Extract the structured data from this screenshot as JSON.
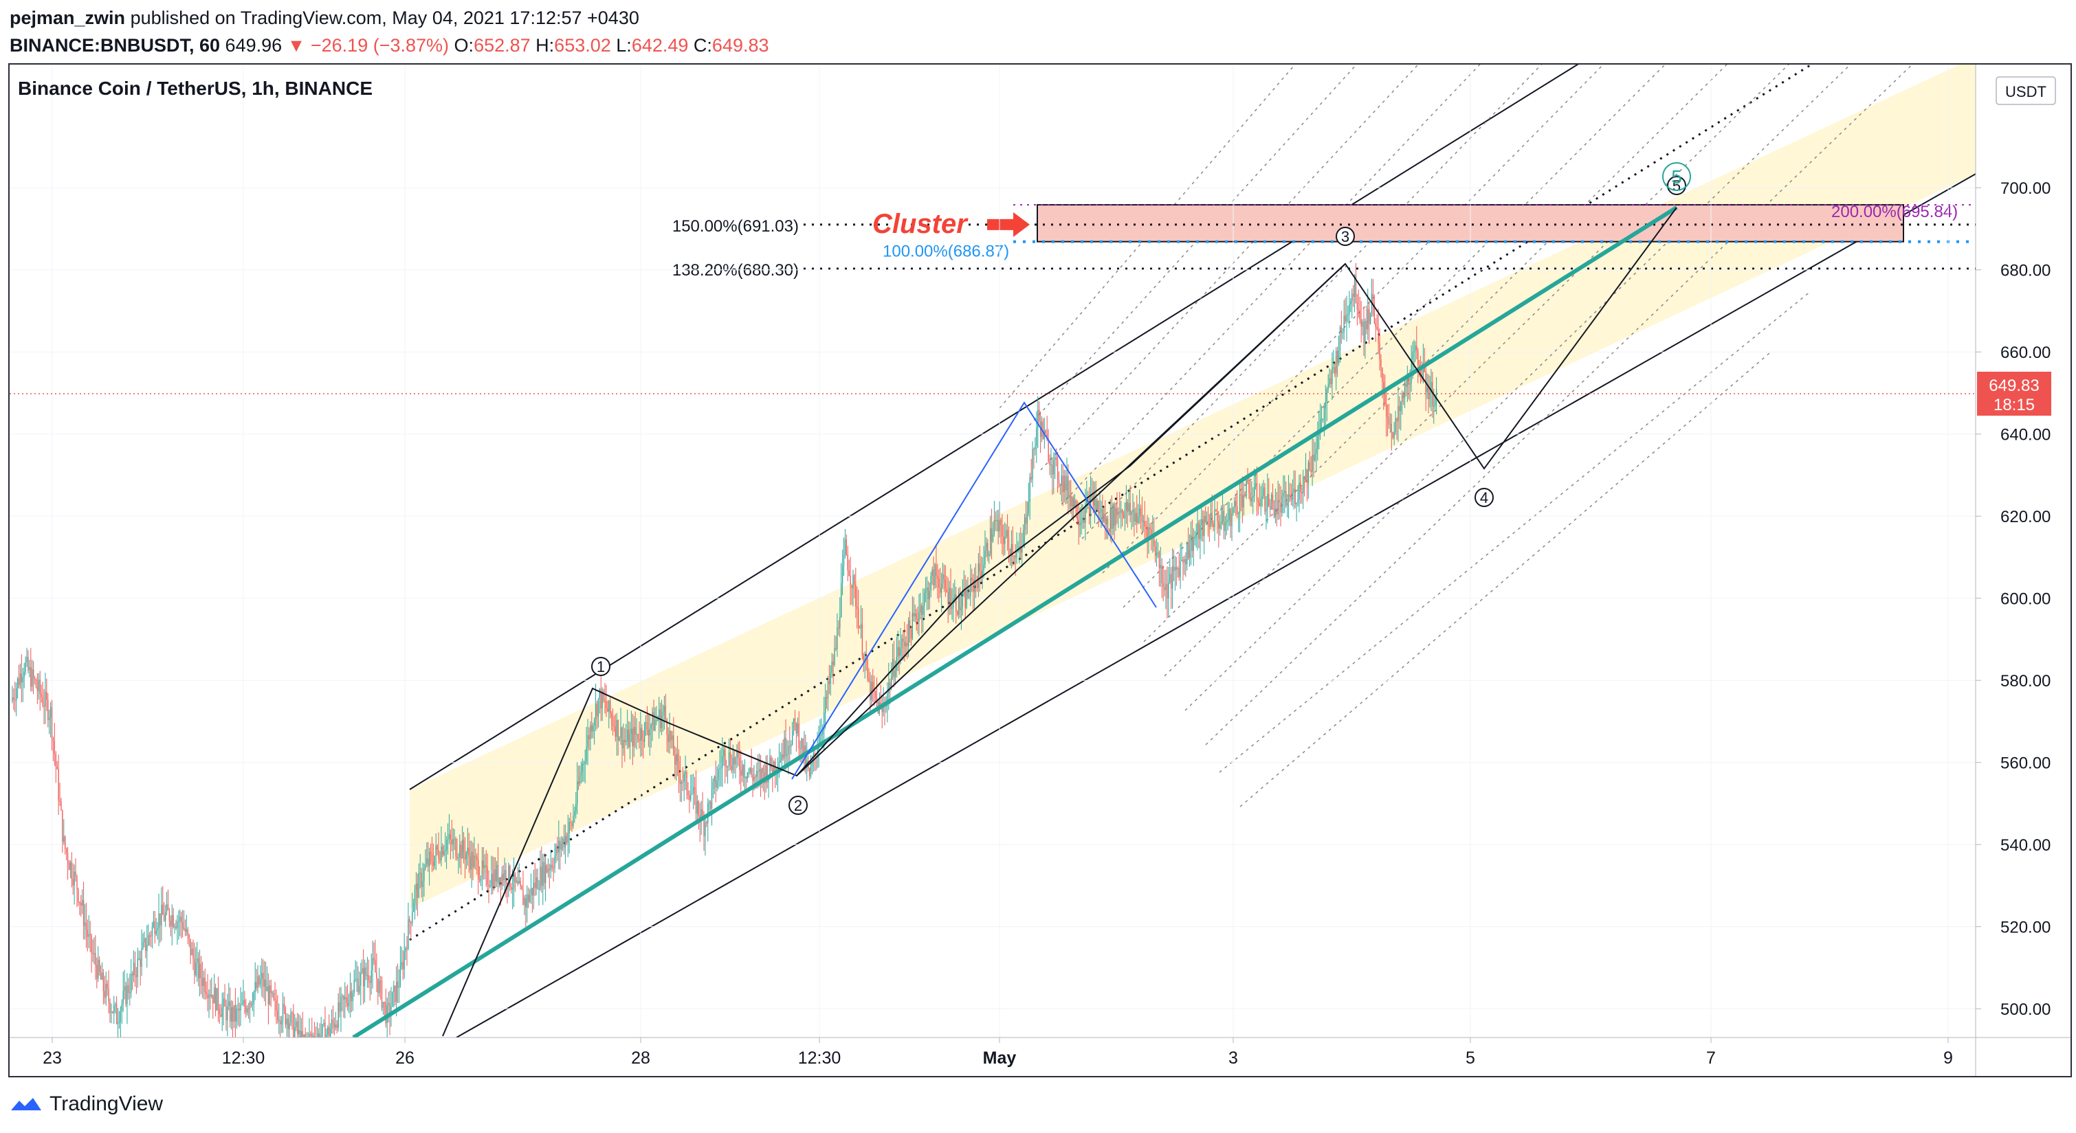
{
  "header": {
    "publisher": "pejman_zwin",
    "published_text": "published on TradingView.com, May 04, 2021 17:12:57 +0430",
    "symbol": "BINANCE:BNBUSDT, 60",
    "last_price": "649.96",
    "change": "▼ −26.19 (−3.87%)",
    "ohlc": {
      "o_label": "O:",
      "o_value": "652.87",
      "h_label": "H:",
      "h_value": "653.02",
      "l_label": "L:",
      "l_value": "642.49",
      "c_label": "C:",
      "c_value": "649.83"
    }
  },
  "footer": {
    "brand": "TradingView"
  },
  "colors": {
    "up": "#26a69a",
    "down": "#ef5350",
    "channel_fill": "#fff7d6",
    "trend": "#26a69a",
    "zone_fill": "#f8c8c0",
    "cluster_text": "#f44336",
    "fib_blue": "#2196f3",
    "fib_purple": "#9c27b0",
    "price_tag": "#ef5350",
    "zigzag_blue": "#2962ff"
  },
  "chart_data": {
    "type": "candlestick",
    "title": "Binance Coin / TetherUS, 1h, BINANCE",
    "currency_label": "USDT",
    "x_ticks": [
      "23",
      "12:30",
      "26",
      "28",
      "12:30",
      "May",
      "3",
      "5",
      "7",
      "9"
    ],
    "y_ticks": [
      500,
      520,
      540,
      560,
      580,
      600,
      620,
      640,
      660,
      680,
      700
    ],
    "ylim": [
      493,
      730
    ],
    "last_price_tag": {
      "price": "649.83",
      "countdown": "18:15",
      "value": 649.83
    },
    "fib_levels": [
      {
        "label": "150.00%(691.03)",
        "value": 691.03
      },
      {
        "label": "138.20%(680.30)",
        "value": 680.3
      },
      {
        "label": "100.00%(686.87)",
        "value": 686.87
      },
      {
        "label": "200.00%(695.84)",
        "value": 695.84
      }
    ],
    "annotations": {
      "cluster_text": "Cluster",
      "wave_labels": [
        "1",
        "2",
        "3",
        "4",
        "5"
      ],
      "target_wave_label": "5"
    },
    "price_path": [
      [
        0,
        575
      ],
      [
        10,
        584
      ],
      [
        20,
        578
      ],
      [
        30,
        572
      ],
      [
        40,
        540
      ],
      [
        50,
        530
      ],
      [
        60,
        515
      ],
      [
        70,
        505
      ],
      [
        80,
        498
      ],
      [
        95,
        510
      ],
      [
        110,
        522
      ],
      [
        120,
        523
      ],
      [
        130,
        521
      ],
      [
        140,
        510
      ],
      [
        150,
        505
      ],
      [
        160,
        500
      ],
      [
        170,
        498
      ],
      [
        180,
        502
      ],
      [
        190,
        507
      ],
      [
        200,
        500
      ],
      [
        210,
        498
      ],
      [
        220,
        492
      ],
      [
        240,
        494
      ],
      [
        260,
        506
      ],
      [
        275,
        510
      ],
      [
        285,
        498
      ],
      [
        295,
        508
      ],
      [
        305,
        527
      ],
      [
        315,
        535
      ],
      [
        330,
        541
      ],
      [
        345,
        538
      ],
      [
        360,
        532
      ],
      [
        375,
        533
      ],
      [
        390,
        526
      ],
      [
        400,
        532
      ],
      [
        410,
        536
      ],
      [
        425,
        545
      ],
      [
        432,
        558
      ],
      [
        440,
        570
      ],
      [
        446,
        576
      ],
      [
        455,
        571
      ],
      [
        465,
        565
      ],
      [
        480,
        568
      ],
      [
        495,
        572
      ],
      [
        505,
        558
      ],
      [
        515,
        553
      ],
      [
        525,
        545
      ],
      [
        540,
        562
      ],
      [
        550,
        560
      ],
      [
        565,
        556
      ],
      [
        580,
        560
      ],
      [
        595,
        569
      ],
      [
        605,
        556
      ],
      [
        615,
        570
      ],
      [
        625,
        588
      ],
      [
        632,
        612
      ],
      [
        640,
        600
      ],
      [
        650,
        578
      ],
      [
        660,
        572
      ],
      [
        670,
        585
      ],
      [
        685,
        595
      ],
      [
        700,
        606
      ],
      [
        710,
        601
      ],
      [
        720,
        598
      ],
      [
        735,
        607
      ],
      [
        745,
        618
      ],
      [
        755,
        614
      ],
      [
        765,
        610
      ],
      [
        778,
        644
      ],
      [
        790,
        632
      ],
      [
        800,
        627
      ],
      [
        810,
        620
      ],
      [
        820,
        624
      ],
      [
        830,
        618
      ],
      [
        840,
        622
      ],
      [
        855,
        620
      ],
      [
        865,
        615
      ],
      [
        875,
        602
      ],
      [
        885,
        608
      ],
      [
        895,
        614
      ],
      [
        910,
        620
      ],
      [
        920,
        618
      ],
      [
        935,
        626
      ],
      [
        945,
        625
      ],
      [
        960,
        622
      ],
      [
        975,
        626
      ],
      [
        985,
        633
      ],
      [
        995,
        646
      ],
      [
        1005,
        660
      ],
      [
        1012,
        671
      ],
      [
        1018,
        676
      ],
      [
        1025,
        665
      ],
      [
        1032,
        673
      ],
      [
        1040,
        648
      ],
      [
        1048,
        640
      ],
      [
        1058,
        653
      ],
      [
        1065,
        660
      ],
      [
        1072,
        652
      ],
      [
        1080,
        648
      ]
    ]
  }
}
